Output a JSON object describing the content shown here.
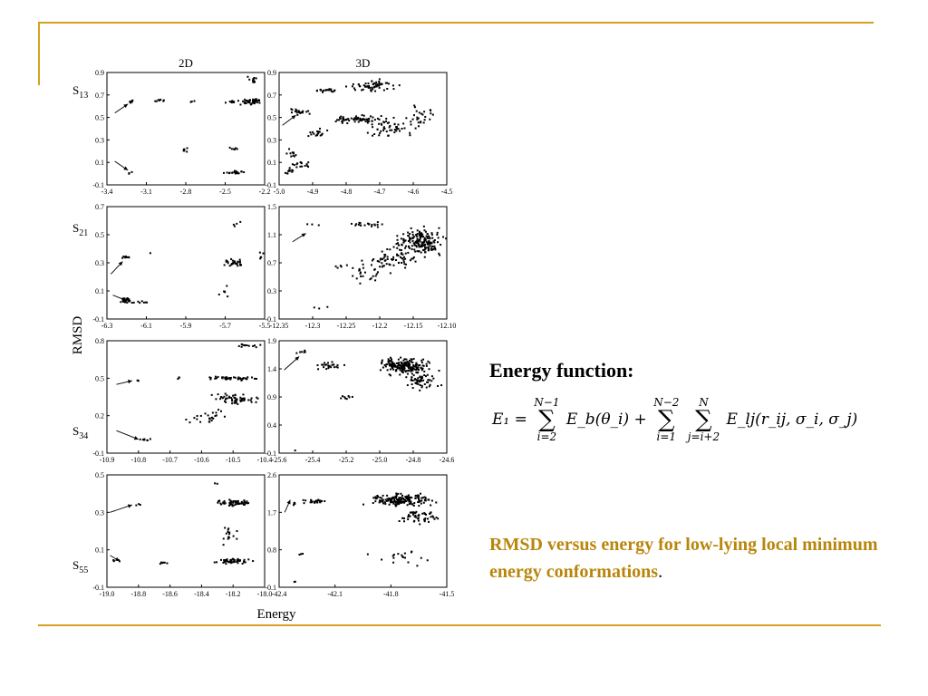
{
  "slide": {
    "energy_title": "Energy function:",
    "equation": {
      "lhs": "E₁ =",
      "sum1_top": "N−1",
      "sum1_bottom": "i=2",
      "term1": "E_b(θ_i) +",
      "sum2_top": "N−2",
      "sum2_bottom": "i=1",
      "sum3_top": "N",
      "sum3_bottom": "j=i+2",
      "term2": "E_lj(r_ij, σ_i, σ_j)"
    },
    "caption_main": "RMSD versus energy for low-lying local minimum energy conformations",
    "caption_end": ".",
    "accent_color": "#d6a021",
    "caption_color": "#b8860b"
  },
  "chart_data": [
    {
      "type": "scatter",
      "title": "2D",
      "row_label": "S13",
      "xlim": [
        -3.4,
        -2.2
      ],
      "ylim": [
        -0.1,
        0.9
      ],
      "xticks": [
        "-3.4",
        "-3.1",
        "-2.8",
        "-2.5",
        "-2.2"
      ],
      "yticks": [
        "-0.1",
        "0.1",
        "0.3",
        "0.5",
        "0.7",
        "0.9"
      ],
      "clusters": [
        [
          -3.22,
          0.64,
          0.03,
          0.02,
          6
        ],
        [
          -3.0,
          0.65,
          0.08,
          0.02,
          8
        ],
        [
          -2.75,
          0.64,
          0.02,
          0.02,
          3
        ],
        [
          -2.45,
          0.64,
          0.06,
          0.02,
          10
        ],
        [
          -2.3,
          0.64,
          0.1,
          0.03,
          45
        ],
        [
          -2.3,
          0.83,
          0.06,
          0.06,
          12
        ],
        [
          -2.8,
          0.22,
          0.03,
          0.06,
          6
        ],
        [
          -2.45,
          0.22,
          0.06,
          0.03,
          6
        ],
        [
          -2.42,
          0.01,
          0.12,
          0.02,
          20
        ],
        [
          -3.22,
          0.01,
          0.02,
          0.02,
          3
        ]
      ],
      "arrows": [
        [
          -3.34,
          0.54,
          -3.24,
          0.62
        ],
        [
          -3.34,
          0.11,
          -3.24,
          0.03
        ]
      ]
    },
    {
      "type": "scatter",
      "title": "3D",
      "xlim": [
        -5.0,
        -4.5
      ],
      "ylim": [
        -0.1,
        0.9
      ],
      "xticks": [
        "-5.0",
        "-4.9",
        "-4.8",
        "-4.7",
        "-4.6",
        "-4.5"
      ],
      "yticks": [
        "-0.1",
        "0.1",
        "0.3",
        "0.5",
        "0.7",
        "0.9"
      ],
      "clusters": [
        [
          -4.97,
          0.02,
          0.02,
          0.04,
          12
        ],
        [
          -4.93,
          0.08,
          0.04,
          0.04,
          15
        ],
        [
          -4.96,
          0.18,
          0.02,
          0.05,
          10
        ],
        [
          -4.94,
          0.55,
          0.04,
          0.04,
          20
        ],
        [
          -4.86,
          0.74,
          0.05,
          0.02,
          20
        ],
        [
          -4.72,
          0.78,
          0.1,
          0.07,
          60
        ],
        [
          -4.78,
          0.48,
          0.1,
          0.05,
          60
        ],
        [
          -4.67,
          0.42,
          0.1,
          0.12,
          55
        ],
        [
          -4.88,
          0.35,
          0.05,
          0.06,
          18
        ],
        [
          -4.58,
          0.5,
          0.06,
          0.15,
          25
        ]
      ],
      "arrows": [
        [
          -4.99,
          0.43,
          -4.95,
          0.52
        ]
      ]
    },
    {
      "type": "scatter",
      "row_label": "S21",
      "xlim": [
        -6.3,
        -5.5
      ],
      "ylim": [
        -0.1,
        0.7
      ],
      "xticks": [
        "-6.3",
        "-6.1",
        "-5.9",
        "-5.7",
        "-5.5"
      ],
      "yticks": [
        "-0.1",
        "0.1",
        "0.3",
        "0.5",
        "0.7"
      ],
      "clusters": [
        [
          -6.2,
          0.34,
          0.03,
          0.02,
          8
        ],
        [
          -6.2,
          0.03,
          0.04,
          0.03,
          25
        ],
        [
          -6.12,
          0.02,
          0.04,
          0.02,
          6
        ],
        [
          -5.65,
          0.3,
          0.07,
          0.04,
          30
        ],
        [
          -5.65,
          0.57,
          0.06,
          0.03,
          4
        ],
        [
          -5.7,
          0.1,
          0.04,
          0.06,
          6
        ],
        [
          -5.52,
          0.35,
          0.02,
          0.06,
          5
        ],
        [
          -6.08,
          0.37,
          0.01,
          0.01,
          1
        ]
      ],
      "arrows": [
        [
          -6.28,
          0.22,
          -6.22,
          0.31
        ],
        [
          -6.27,
          0.07,
          -6.2,
          0.03
        ]
      ]
    },
    {
      "type": "scatter",
      "xlim": [
        -12.35,
        -12.1
      ],
      "ylim": [
        -0.1,
        1.5
      ],
      "xticks": [
        "-12.35",
        "-12.3",
        "-12.25",
        "-12.2",
        "-12.15",
        "-12.10"
      ],
      "yticks": [
        "-0.1",
        "0.3",
        "0.7",
        "1.1",
        "1.5"
      ],
      "clusters": [
        [
          -12.14,
          1.0,
          0.05,
          0.25,
          180
        ],
        [
          -12.18,
          0.75,
          0.06,
          0.2,
          60
        ],
        [
          -12.22,
          0.55,
          0.04,
          0.2,
          25
        ],
        [
          -12.22,
          1.25,
          0.04,
          0.06,
          20
        ],
        [
          -12.3,
          1.24,
          0.02,
          0.02,
          3
        ],
        [
          -12.26,
          0.65,
          0.02,
          0.05,
          5
        ],
        [
          -12.29,
          0.05,
          0.02,
          0.05,
          3
        ]
      ],
      "arrows": [
        [
          -12.33,
          1.0,
          -12.31,
          1.12
        ]
      ]
    },
    {
      "type": "scatter",
      "row_label": "S34",
      "xlim": [
        -10.9,
        -10.4
      ],
      "ylim": [
        -0.1,
        0.8
      ],
      "xticks": [
        "-10.9",
        "-10.8",
        "-10.7",
        "-10.6",
        "-10.5",
        "-10.4"
      ],
      "yticks": [
        "-0.1",
        "0.2",
        "0.5",
        "0.8"
      ],
      "clusters": [
        [
          -10.8,
          0.48,
          0.01,
          0.01,
          3
        ],
        [
          -10.78,
          0.01,
          0.03,
          0.01,
          8
        ],
        [
          -10.5,
          0.5,
          0.1,
          0.02,
          45
        ],
        [
          -10.5,
          0.33,
          0.1,
          0.06,
          60
        ],
        [
          -10.58,
          0.2,
          0.08,
          0.08,
          25
        ],
        [
          -10.45,
          0.76,
          0.06,
          0.02,
          12
        ],
        [
          -10.67,
          0.5,
          0.02,
          0.01,
          3
        ]
      ],
      "arrows": [
        [
          -10.87,
          0.45,
          -10.82,
          0.48
        ],
        [
          -10.87,
          0.08,
          -10.8,
          0.01
        ]
      ]
    },
    {
      "type": "scatter",
      "xlim": [
        -25.6,
        -24.6
      ],
      "ylim": [
        -0.1,
        1.9
      ],
      "xticks": [
        "-25.6",
        "-25.4",
        "-25.2",
        "-25.0",
        "-24.8",
        "-24.6"
      ],
      "yticks": [
        "-0.1",
        "0.4",
        "0.9",
        "1.4",
        "1.9"
      ],
      "clusters": [
        [
          -24.85,
          1.45,
          0.2,
          0.2,
          180
        ],
        [
          -24.75,
          1.2,
          0.15,
          0.25,
          60
        ],
        [
          -25.3,
          1.45,
          0.12,
          0.1,
          25
        ],
        [
          -25.46,
          1.7,
          0.05,
          0.04,
          6
        ],
        [
          -25.2,
          0.9,
          0.1,
          0.08,
          8
        ],
        [
          -25.5,
          -0.05,
          0.01,
          0.01,
          1
        ]
      ],
      "arrows": [
        [
          -25.57,
          1.38,
          -25.48,
          1.62
        ]
      ]
    },
    {
      "type": "scatter",
      "row_label": "S55",
      "xlim": [
        -19.0,
        -18.0
      ],
      "ylim": [
        -0.1,
        0.5
      ],
      "xticks": [
        "-19.0",
        "-18.8",
        "-18.6",
        "-18.4",
        "-18.2",
        "-18.0"
      ],
      "yticks": [
        "-0.1",
        "0.1",
        "0.3",
        "0.5"
      ],
      "clusters": [
        [
          -18.8,
          0.34,
          0.02,
          0.01,
          3
        ],
        [
          -18.94,
          0.04,
          0.04,
          0.02,
          5
        ],
        [
          -18.2,
          0.35,
          0.18,
          0.02,
          60
        ],
        [
          -18.2,
          0.04,
          0.18,
          0.02,
          50
        ],
        [
          -18.22,
          0.18,
          0.08,
          0.08,
          15
        ],
        [
          -18.65,
          0.03,
          0.08,
          0.01,
          6
        ],
        [
          -18.3,
          0.45,
          0.02,
          0.01,
          2
        ]
      ],
      "arrows": [
        [
          -18.98,
          0.3,
          -18.84,
          0.34
        ],
        [
          -18.98,
          0.07,
          -18.92,
          0.04
        ]
      ]
    },
    {
      "type": "scatter",
      "xlim": [
        -42.4,
        -41.5
      ],
      "ylim": [
        -0.1,
        2.6
      ],
      "xticks": [
        "-42.4",
        "-42.1",
        "-41.8",
        "-41.5"
      ],
      "yticks": [
        "-0.1",
        "0.8",
        "1.7",
        "2.6"
      ],
      "clusters": [
        [
          -41.75,
          2.0,
          0.22,
          0.2,
          170
        ],
        [
          -41.65,
          1.6,
          0.15,
          0.2,
          50
        ],
        [
          -42.2,
          1.95,
          0.08,
          0.08,
          25
        ],
        [
          -41.75,
          0.6,
          0.2,
          0.25,
          18
        ],
        [
          -42.28,
          0.7,
          0.02,
          0.05,
          3
        ],
        [
          -42.32,
          0.05,
          0.01,
          0.05,
          2
        ],
        [
          -42.32,
          1.9,
          0.01,
          0.1,
          4
        ]
      ],
      "arrows": [
        [
          -42.37,
          1.7,
          -42.34,
          2.0
        ]
      ]
    }
  ],
  "figure_labels": {
    "ylabel": "RMSD",
    "xlabel": "Energy"
  }
}
